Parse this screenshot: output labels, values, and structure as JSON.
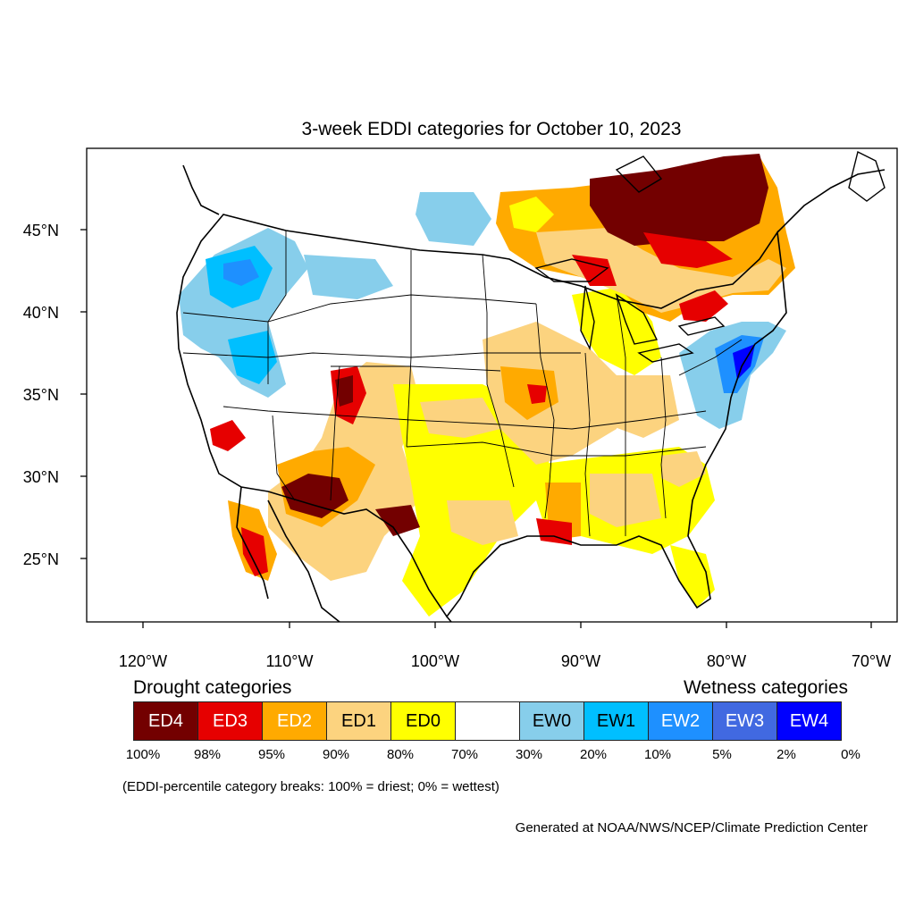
{
  "title": "3-week EDDI categories for October 10, 2023",
  "lat_labels": [
    "45°N",
    "40°N",
    "35°N",
    "30°N",
    "25°N"
  ],
  "lon_labels": [
    "120°W",
    "110°W",
    "100°W",
    "90°W",
    "80°W",
    "70°W"
  ],
  "legend": {
    "drought_label": "Drought categories",
    "wetness_label": "Wetness categories",
    "categories": [
      {
        "label": "ED4",
        "color": "#730000",
        "text_color": "#ffffff"
      },
      {
        "label": "ED3",
        "color": "#e60000",
        "text_color": "#ffffff"
      },
      {
        "label": "ED2",
        "color": "#ffaa00",
        "text_color": "#ffffff"
      },
      {
        "label": "ED1",
        "color": "#fcd37f",
        "text_color": "#000000"
      },
      {
        "label": "ED0",
        "color": "#ffff00",
        "text_color": "#000000"
      },
      {
        "label": "",
        "color": "#ffffff",
        "text_color": "#000000"
      },
      {
        "label": "EW0",
        "color": "#87ceeb",
        "text_color": "#000000"
      },
      {
        "label": "EW1",
        "color": "#00bfff",
        "text_color": "#000000"
      },
      {
        "label": "EW2",
        "color": "#1e90ff",
        "text_color": "#ffffff"
      },
      {
        "label": "EW3",
        "color": "#4169e1",
        "text_color": "#ffffff"
      },
      {
        "label": "EW4",
        "color": "#0000ff",
        "text_color": "#ffffff"
      }
    ],
    "breaks": [
      "100%",
      "98%",
      "95%",
      "90%",
      "80%",
      "70%",
      "30%",
      "20%",
      "10%",
      "5%",
      "2%",
      "0%"
    ],
    "note": "(EDDI-percentile category breaks: 100% = driest; 0% = wettest)"
  },
  "credit": "Generated at NOAA/NWS/NCEP/Climate Prediction Center"
}
